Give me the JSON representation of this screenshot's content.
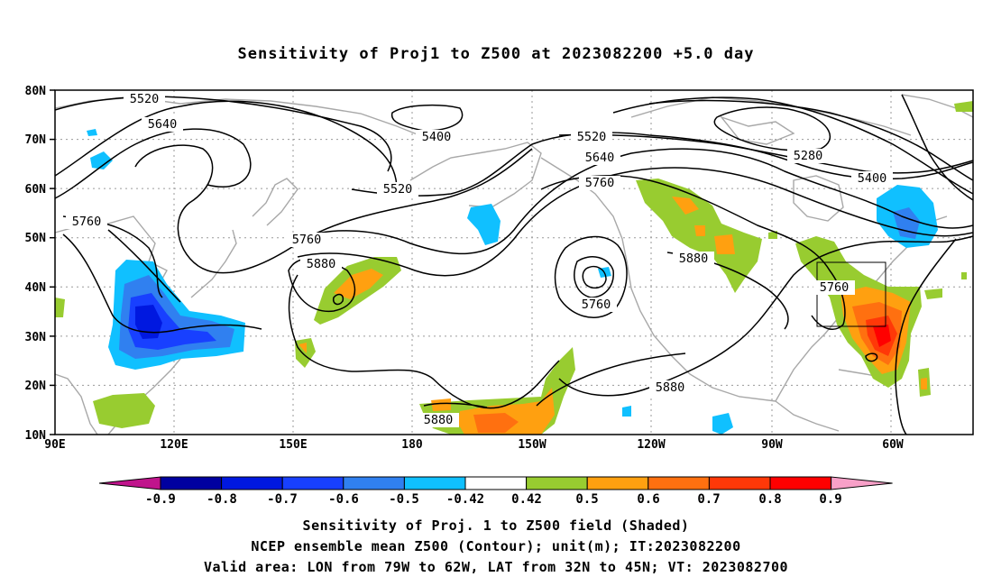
{
  "title": "Sensitivity of Proj1 to Z500 at 2023082200 +5.0 day",
  "lat_ticks": [
    "80N",
    "70N",
    "60N",
    "50N",
    "40N",
    "30N",
    "20N",
    "10N"
  ],
  "lon_ticks": [
    "90E",
    "120E",
    "150E",
    "180",
    "150W",
    "120W",
    "90W",
    "60W"
  ],
  "contour_labels": [
    "5520",
    "5640",
    "5400",
    "5520",
    "5640",
    "5760",
    "5280",
    "5400",
    "5760",
    "5520",
    "5760",
    "5880",
    "5760",
    "5880",
    "5760",
    "5880",
    "5880"
  ],
  "colorbar": {
    "labels": [
      "-0.9",
      "-0.8",
      "-0.7",
      "-0.6",
      "-0.5",
      "-0.42",
      "0.42",
      "0.5",
      "0.6",
      "0.7",
      "0.8",
      "0.9"
    ],
    "colors": [
      "#0000a0",
      "#0018e0",
      "#1840ff",
      "#3080f0",
      "#10c0ff",
      "#ffffff",
      "#98cc30",
      "#ffa010",
      "#ff7010",
      "#ff3808",
      "#ff0000"
    ],
    "low_end_color": "#c0148c",
    "high_end_color": "#f8a0c8"
  },
  "caption": {
    "line1": "Sensitivity of Proj. 1 to Z500 field (Shaded)",
    "line2": "NCEP ensemble mean Z500 (Contour); unit(m); IT:2023082200",
    "line3": "Valid area: LON from 79W to 62W, LAT from 32N to 45N; VT: 2023082700"
  }
}
